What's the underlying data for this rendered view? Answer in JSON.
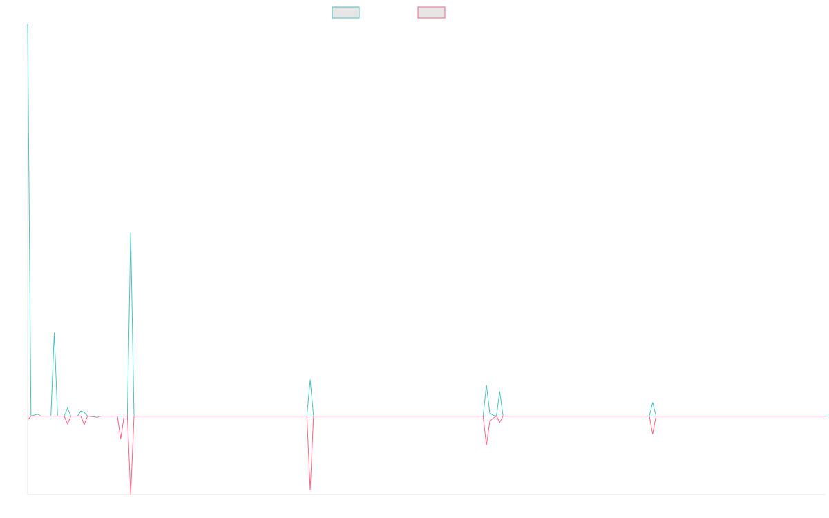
{
  "chart_data": {
    "type": "line",
    "xlim": [
      0,
      240
    ],
    "ylim": [
      -20,
      100
    ],
    "series": [
      {
        "color": "#4bc0c0",
        "x": [
          0,
          1,
          3,
          4,
          7,
          8,
          9,
          11,
          12,
          13,
          15,
          16,
          17,
          18,
          30,
          31,
          32,
          84,
          85,
          86,
          137,
          138,
          139,
          140,
          141,
          142,
          143,
          187,
          188,
          189,
          240
        ],
        "values": [
          100,
          0,
          0.5,
          0,
          0,
          21.3,
          0,
          0,
          2.1,
          0,
          0,
          1.3,
          1.0,
          0,
          0,
          46.9,
          0,
          0,
          9.3,
          0,
          0,
          7.9,
          0.8,
          0.2,
          0,
          6.3,
          0,
          0,
          3.5,
          0,
          0
        ]
      },
      {
        "color": "#ff6384",
        "x": [
          0,
          1,
          11,
          12,
          13,
          16,
          17,
          18,
          21,
          22,
          27,
          28,
          29,
          30,
          31,
          32,
          84,
          85,
          86,
          137,
          138,
          139,
          140,
          141,
          142,
          143,
          187,
          188,
          189,
          240
        ],
        "values": [
          -1,
          0,
          0,
          -2.0,
          0,
          0,
          -2.2,
          0,
          -0.3,
          0,
          0,
          -5.8,
          0,
          0,
          -20,
          0,
          0,
          -18.9,
          0,
          0,
          -7.4,
          -1.4,
          -0.5,
          0,
          -1.6,
          0,
          0,
          -4.6,
          0,
          0
        ]
      }
    ]
  }
}
